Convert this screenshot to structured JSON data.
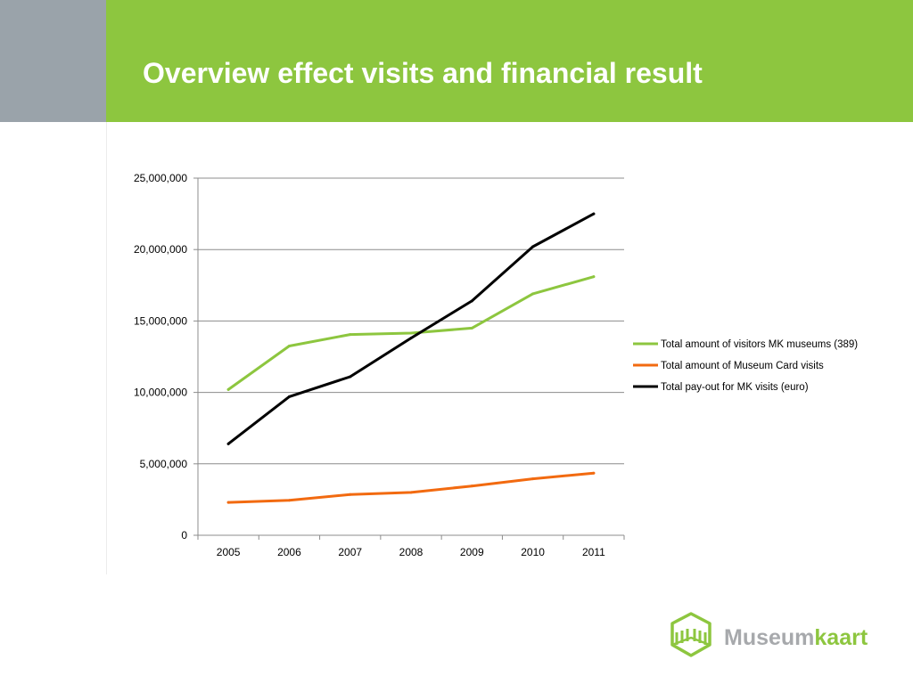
{
  "slide": {
    "title": "Overview effect visits and financial result"
  },
  "colors": {
    "header_green": "#8dc63f",
    "header_gray": "#9aa3aa",
    "gridline": "#8c8c8c",
    "logo_gray": "#a7a9ac",
    "logo_green": "#8dc63f"
  },
  "chart_data": {
    "type": "line",
    "title": "",
    "xlabel": "",
    "ylabel": "",
    "categories": [
      "2005",
      "2006",
      "2007",
      "2008",
      "2009",
      "2010",
      "2011"
    ],
    "y_ticks": [
      0,
      5000000,
      10000000,
      15000000,
      20000000,
      25000000
    ],
    "y_tick_labels": [
      "0",
      "5,000,000",
      "10,000,000",
      "15,000,000",
      "20,000,000",
      "25,000,000"
    ],
    "ylim": [
      0,
      25000000
    ],
    "grid": true,
    "legend_position": "right",
    "series": [
      {
        "name": "Total amount of visitors MK museums (389)",
        "color": "#8dc63f",
        "values": [
          10200000,
          13250000,
          14050000,
          14150000,
          14500000,
          16900000,
          18100000
        ]
      },
      {
        "name": "Total amount of Museum Card visits",
        "color": "#f26a10",
        "values": [
          2300000,
          2450000,
          2850000,
          3000000,
          3450000,
          3950000,
          4350000
        ]
      },
      {
        "name": "Total pay-out for MK visits (euro)",
        "color": "#000000",
        "values": [
          6400000,
          9700000,
          11100000,
          13800000,
          16400000,
          20200000,
          22500000
        ]
      }
    ]
  },
  "logo": {
    "text_part1": "Museum",
    "text_part2": "kaart"
  }
}
